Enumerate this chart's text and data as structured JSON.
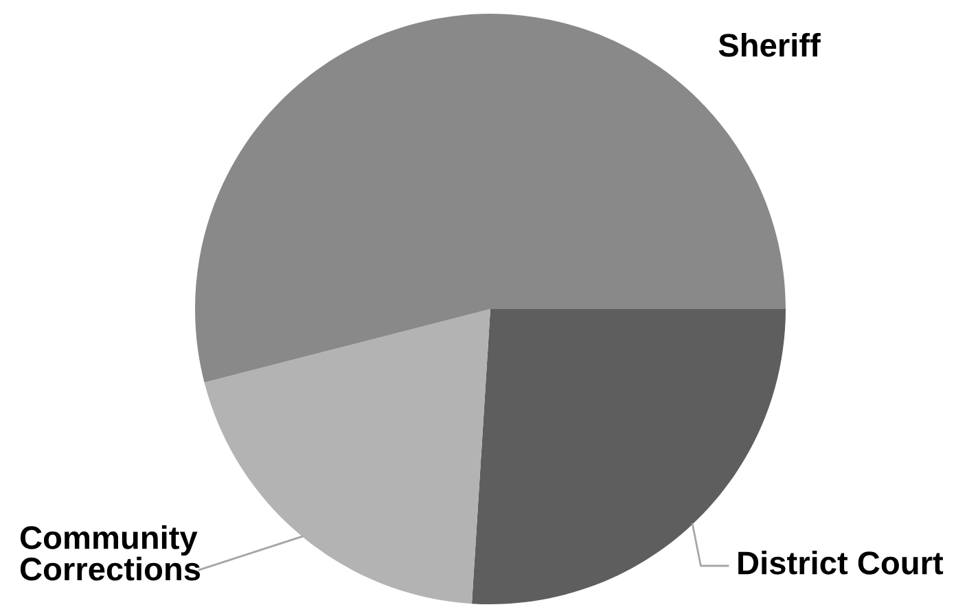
{
  "chart_data": {
    "type": "pie",
    "categories": [
      "District Court",
      "Community Corrections",
      "Sheriff"
    ],
    "values": [
      26,
      20,
      54
    ],
    "colors": [
      "#5e5e5e",
      "#b3b3b3",
      "#898989"
    ]
  }
}
